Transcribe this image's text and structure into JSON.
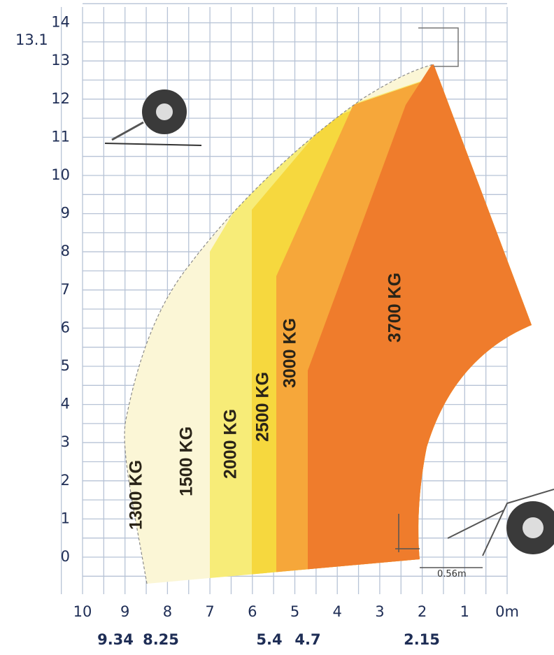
{
  "axis": {
    "y_labels": [
      "0",
      "1",
      "2",
      "3",
      "4",
      "5",
      "6",
      "7",
      "8",
      "9",
      "10",
      "11",
      "12",
      "13",
      "14"
    ],
    "max_height": "13.1",
    "x_labels": [
      "10",
      "9",
      "8",
      "7",
      "6",
      "5",
      "4",
      "3",
      "2",
      "1",
      "0m"
    ],
    "reach_labels": [
      "9.34",
      "8.25",
      "5.4",
      "4.7",
      "2.15"
    ]
  },
  "zones": [
    {
      "label": "1300 KG"
    },
    {
      "label": "1500 KG"
    },
    {
      "label": "2000 KG"
    },
    {
      "label": "2500 KG"
    },
    {
      "label": "3000 KG"
    },
    {
      "label": "3700 KG"
    }
  ],
  "dimension": "0.56m"
}
